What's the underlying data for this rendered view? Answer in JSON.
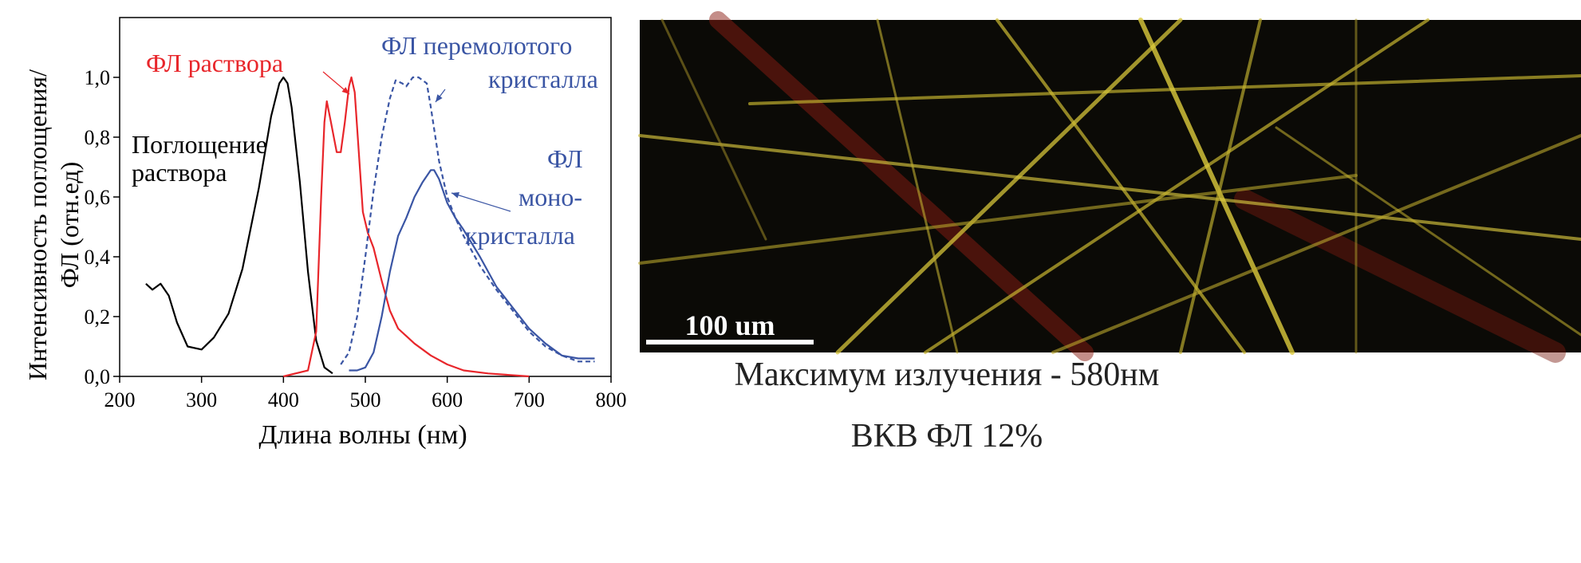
{
  "chart_data": {
    "type": "line",
    "x_label": "Длина волны (нм)",
    "y_label": [
      "Интенсивность поглощения/",
      "ФЛ (отн.ед)"
    ],
    "xlim": [
      200,
      800
    ],
    "ylim": [
      0,
      1.2
    ],
    "xticks": [
      200,
      300,
      400,
      500,
      600,
      700,
      800
    ],
    "yticks": [
      {
        "value": 0,
        "label": "0,0"
      },
      {
        "value": 0.2,
        "label": "0,2"
      },
      {
        "value": 0.4,
        "label": "0,4"
      },
      {
        "value": 0.6,
        "label": "0,6"
      },
      {
        "value": 0.8,
        "label": "0,8"
      },
      {
        "value": 1.0,
        "label": "1,0"
      }
    ],
    "series": [
      {
        "color": "#000000",
        "dashed": false,
        "x": [
          232,
          240,
          250,
          260,
          270,
          283,
          300,
          315,
          333,
          350,
          370,
          385,
          395,
          400,
          405,
          410,
          420,
          430,
          440,
          450,
          460
        ],
        "values": [
          0.31,
          0.29,
          0.31,
          0.27,
          0.18,
          0.1,
          0.09,
          0.13,
          0.21,
          0.36,
          0.63,
          0.87,
          0.98,
          1.0,
          0.98,
          0.9,
          0.65,
          0.35,
          0.12,
          0.03,
          0.01
        ]
      },
      {
        "color": "#e8262b",
        "dashed": false,
        "x": [
          400,
          430,
          440,
          446,
          450,
          453,
          458,
          465,
          470,
          475,
          480,
          483,
          487,
          492,
          497,
          503,
          510,
          520,
          530,
          540,
          560,
          580,
          600,
          620,
          650,
          700
        ],
        "values": [
          0,
          0.02,
          0.15,
          0.6,
          0.85,
          0.92,
          0.85,
          0.75,
          0.75,
          0.85,
          0.97,
          1.0,
          0.95,
          0.75,
          0.55,
          0.48,
          0.43,
          0.32,
          0.22,
          0.16,
          0.11,
          0.07,
          0.04,
          0.02,
          0.01,
          0
        ]
      },
      {
        "color": "#3a55a4",
        "dashed": true,
        "x": [
          470,
          480,
          490,
          500,
          510,
          520,
          530,
          537,
          545,
          550,
          558,
          565,
          575,
          580,
          590,
          600,
          610,
          620,
          640,
          660,
          680,
          700,
          720,
          740,
          760,
          780
        ],
        "values": [
          0.04,
          0.08,
          0.2,
          0.4,
          0.62,
          0.8,
          0.93,
          0.99,
          0.98,
          0.97,
          1.0,
          1.0,
          0.98,
          0.9,
          0.72,
          0.6,
          0.53,
          0.47,
          0.37,
          0.29,
          0.22,
          0.15,
          0.1,
          0.07,
          0.05,
          0.05
        ]
      },
      {
        "color": "#3a55a4",
        "dashed": false,
        "x": [
          480,
          490,
          500,
          510,
          520,
          530,
          540,
          550,
          560,
          570,
          580,
          584,
          590,
          600,
          610,
          620,
          640,
          660,
          680,
          700,
          720,
          740,
          760,
          780
        ],
        "values": [
          0.02,
          0.02,
          0.03,
          0.08,
          0.2,
          0.35,
          0.47,
          0.53,
          0.6,
          0.65,
          0.69,
          0.69,
          0.66,
          0.58,
          0.53,
          0.49,
          0.4,
          0.3,
          0.23,
          0.16,
          0.11,
          0.07,
          0.06,
          0.06
        ]
      }
    ],
    "annotations": [
      {
        "text": [
          "ФЛ раствора"
        ],
        "color": "#e8262b"
      },
      {
        "text": [
          "ФЛ перемолотого",
          "кристалла"
        ],
        "color": "#3a55a4"
      },
      {
        "text": [
          "Поглощение",
          "раствора"
        ],
        "color": "#000000"
      },
      {
        "text": [
          "ФЛ",
          "моно-",
          "кристалла"
        ],
        "color": "#3a55a4"
      }
    ]
  },
  "image": {
    "scale_bar": "100 um",
    "caption": "Максимум излучения - 580нм",
    "quantum_yield": "ВКВ ФЛ 12%"
  }
}
